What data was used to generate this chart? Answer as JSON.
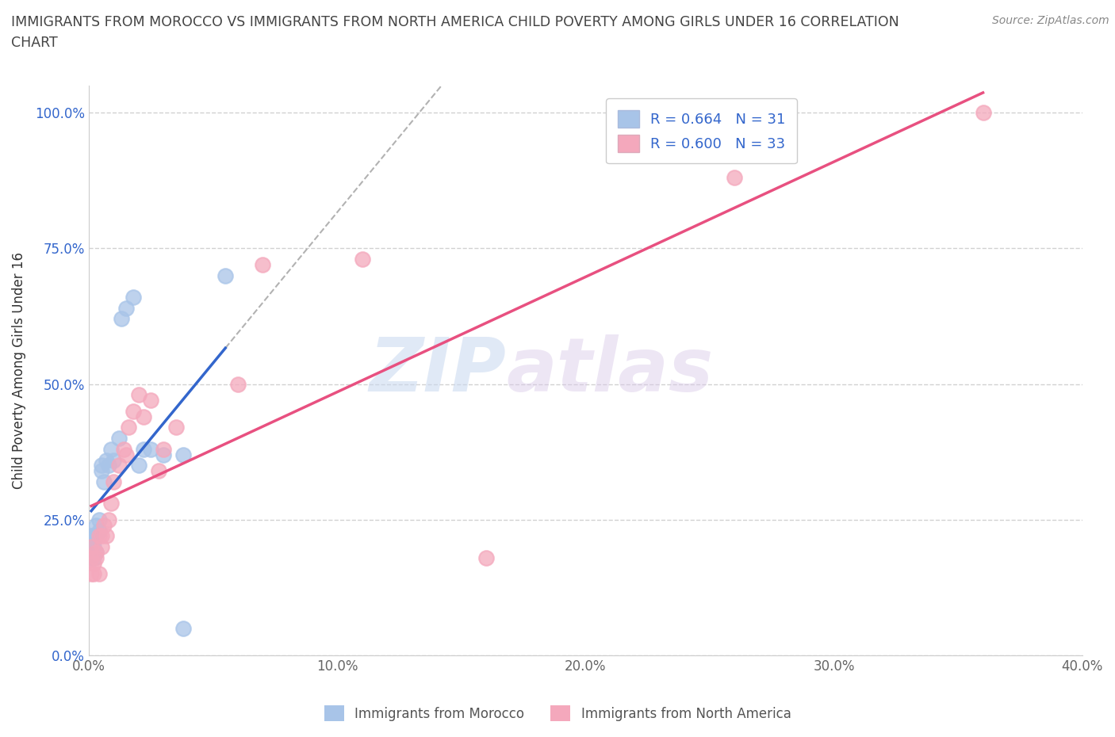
{
  "title": "IMMIGRANTS FROM MOROCCO VS IMMIGRANTS FROM NORTH AMERICA CHILD POVERTY AMONG GIRLS UNDER 16 CORRELATION\nCHART",
  "source": "Source: ZipAtlas.com",
  "ylabel": "Child Poverty Among Girls Under 16",
  "xlim": [
    0.0,
    0.4
  ],
  "ylim": [
    0.0,
    1.05
  ],
  "xticks": [
    0.0,
    0.1,
    0.2,
    0.3,
    0.4
  ],
  "xticklabels": [
    "0.0%",
    "10.0%",
    "20.0%",
    "30.0%",
    "40.0%"
  ],
  "yticks": [
    0.0,
    0.25,
    0.5,
    0.75,
    1.0
  ],
  "yticklabels": [
    "0.0%",
    "25.0%",
    "50.0%",
    "75.0%",
    "100.0%"
  ],
  "morocco_color": "#a8c4e8",
  "north_america_color": "#f4a8bc",
  "morocco_R": 0.664,
  "morocco_N": 31,
  "north_america_R": 0.6,
  "north_america_N": 33,
  "morocco_x": [
    0.001,
    0.001,
    0.001,
    0.001,
    0.002,
    0.002,
    0.002,
    0.002,
    0.003,
    0.003,
    0.003,
    0.004,
    0.004,
    0.005,
    0.005,
    0.006,
    0.007,
    0.008,
    0.009,
    0.01,
    0.012,
    0.013,
    0.015,
    0.018,
    0.02,
    0.022,
    0.025,
    0.03,
    0.038,
    0.055,
    0.038
  ],
  "morocco_y": [
    0.18,
    0.19,
    0.2,
    0.22,
    0.18,
    0.2,
    0.22,
    0.21,
    0.19,
    0.22,
    0.24,
    0.23,
    0.25,
    0.34,
    0.35,
    0.32,
    0.36,
    0.35,
    0.38,
    0.36,
    0.4,
    0.62,
    0.64,
    0.66,
    0.35,
    0.38,
    0.38,
    0.37,
    0.37,
    0.7,
    0.05
  ],
  "north_america_x": [
    0.001,
    0.001,
    0.001,
    0.002,
    0.002,
    0.003,
    0.003,
    0.004,
    0.004,
    0.005,
    0.005,
    0.006,
    0.007,
    0.008,
    0.009,
    0.01,
    0.012,
    0.014,
    0.015,
    0.016,
    0.018,
    0.02,
    0.022,
    0.025,
    0.028,
    0.03,
    0.035,
    0.06,
    0.07,
    0.11,
    0.16,
    0.26,
    0.36
  ],
  "north_america_y": [
    0.15,
    0.18,
    0.2,
    0.15,
    0.17,
    0.18,
    0.19,
    0.15,
    0.22,
    0.2,
    0.22,
    0.24,
    0.22,
    0.25,
    0.28,
    0.32,
    0.35,
    0.38,
    0.37,
    0.42,
    0.45,
    0.48,
    0.44,
    0.47,
    0.34,
    0.38,
    0.42,
    0.5,
    0.72,
    0.73,
    0.18,
    0.88,
    1.0
  ],
  "background_color": "#ffffff",
  "grid_color": "#cccccc",
  "watermark_zip": "ZIP",
  "watermark_atlas": "atlas",
  "legend_R_color": "#3366cc"
}
